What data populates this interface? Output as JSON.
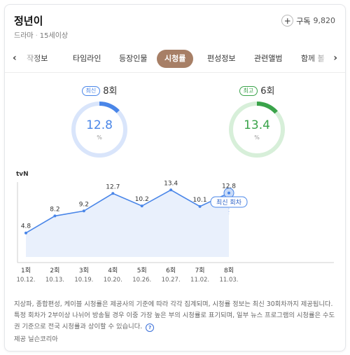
{
  "header": {
    "title": "정년이",
    "genre": "드라마",
    "rating": "15세이상",
    "subscribe_label": "구독",
    "subscribe_count": "9,820"
  },
  "tabs": [
    {
      "label": "작정보",
      "active": false
    },
    {
      "label": "타임라인",
      "active": false
    },
    {
      "label": "등장인물",
      "active": false
    },
    {
      "label": "시청률",
      "active": true
    },
    {
      "label": "편성정보",
      "active": false
    },
    {
      "label": "관련앨범",
      "active": false
    },
    {
      "label": "함께 볼",
      "active": false
    }
  ],
  "latest": {
    "badge": "최신",
    "episode": "8회",
    "value": "12.8",
    "unit": "%",
    "fraction": 0.128,
    "color": "#4a86e8"
  },
  "highest": {
    "badge": "최고",
    "episode": "6회",
    "value": "13.4",
    "unit": "%",
    "fraction": 0.134,
    "color": "#3aa34a"
  },
  "chart_data": {
    "type": "line",
    "channel": "tvN",
    "episodes": [
      "1회",
      "2회",
      "3회",
      "4회",
      "5회",
      "6회",
      "7회",
      "8회"
    ],
    "dates": [
      "10.12.",
      "10.13.",
      "10.19.",
      "10.20.",
      "10.26.",
      "10.27.",
      "11.02.",
      "11.03."
    ],
    "values": [
      4.8,
      8.2,
      9.2,
      12.7,
      10.2,
      13.4,
      10.1,
      12.8
    ],
    "value_labels": [
      "4.8",
      "8.2",
      "9.2",
      "12.7",
      "10.2",
      "13.4",
      "10.1",
      "12.8"
    ],
    "latest_label": "최신 회차",
    "ylim": [
      0,
      14
    ],
    "line_color": "#4a86e8",
    "area_color": "#e9f0fc"
  },
  "notes": {
    "text": "지상파, 종합편성, 케이블 시청률은 제공사의 기준에 따라 각각 집계되며, 시청률 정보는 최신 30회차까지 제공됩니다. 특정 회차가 2부이상 나뉘어 방송될 경우 이중 가장 높은 부의 시청률로 표기되며, 일부 뉴스 프로그램의 시청률은 수도권 기준으로 전국 시청률과 상이할 수 있습니다.",
    "provider": "제공 닐슨코리아"
  }
}
